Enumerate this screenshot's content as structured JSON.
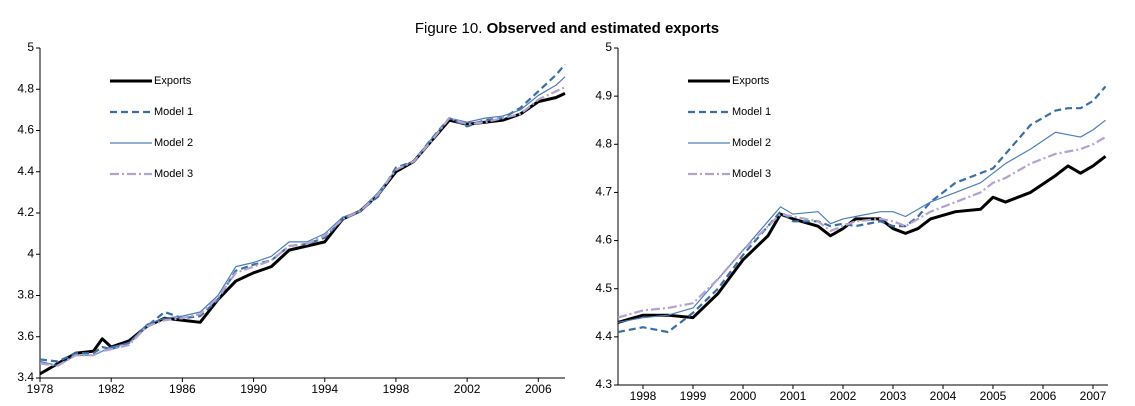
{
  "figure_title": {
    "prefix": "Figure 10.",
    "text": "Observed and estimated exports"
  },
  "chart_data": [
    {
      "type": "line",
      "legend": "upper left",
      "grid": false,
      "xlim": [
        1978,
        2007.5
      ],
      "xticks": [
        1978,
        1982,
        1986,
        1990,
        1994,
        1998,
        2002,
        2006
      ],
      "ylim": [
        3.4,
        5
      ],
      "yticks": [
        3.4,
        3.6,
        3.8,
        4,
        4.2,
        4.4,
        4.6,
        4.8,
        5
      ],
      "x": [
        1978,
        1979,
        1980,
        1981,
        1981.5,
        1982,
        1983,
        1984,
        1985,
        1986,
        1987,
        1988,
        1989,
        1990,
        1991,
        1992,
        1993,
        1994,
        1995,
        1996,
        1997,
        1998,
        1999,
        2000,
        2001,
        2002,
        2003,
        2004,
        2005,
        2006,
        2007,
        2007.5
      ],
      "series": [
        {
          "name": "Exports",
          "color": "#000000",
          "style": "solid",
          "width": 3,
          "values": [
            3.42,
            3.47,
            3.52,
            3.53,
            3.59,
            3.55,
            3.58,
            3.65,
            3.69,
            3.68,
            3.67,
            3.78,
            3.87,
            3.91,
            3.94,
            4.02,
            4.04,
            4.06,
            4.17,
            4.21,
            4.29,
            4.4,
            4.45,
            4.55,
            4.65,
            4.63,
            4.64,
            4.65,
            4.68,
            4.74,
            4.76,
            4.78
          ]
        },
        {
          "name": "Model 1",
          "color": "#3a6ea5",
          "style": "dashed",
          "width": 2.2,
          "values": [
            3.49,
            3.48,
            3.52,
            3.52,
            3.55,
            3.54,
            3.57,
            3.65,
            3.72,
            3.69,
            3.7,
            3.78,
            3.92,
            3.95,
            3.97,
            4.04,
            4.05,
            4.08,
            4.17,
            4.21,
            4.28,
            4.42,
            4.45,
            4.56,
            4.66,
            4.62,
            4.65,
            4.66,
            4.71,
            4.79,
            4.87,
            4.92
          ]
        },
        {
          "name": "Model 2",
          "color": "#4a7ebb",
          "style": "solid",
          "width": 1.2,
          "values": [
            3.48,
            3.46,
            3.51,
            3.51,
            3.53,
            3.55,
            3.57,
            3.66,
            3.69,
            3.7,
            3.72,
            3.8,
            3.94,
            3.96,
            3.99,
            4.06,
            4.06,
            4.1,
            4.18,
            4.21,
            4.3,
            4.41,
            4.45,
            4.56,
            4.66,
            4.64,
            4.66,
            4.67,
            4.7,
            4.77,
            4.82,
            4.86
          ]
        },
        {
          "name": "Model 3",
          "color": "#b3a2cf",
          "style": "dashdot",
          "width": 2.2,
          "values": [
            3.47,
            3.46,
            3.51,
            3.51,
            3.53,
            3.54,
            3.56,
            3.65,
            3.68,
            3.69,
            3.71,
            3.79,
            3.91,
            3.94,
            3.97,
            4.04,
            4.05,
            4.09,
            4.17,
            4.21,
            4.29,
            4.41,
            4.45,
            4.55,
            4.66,
            4.63,
            4.64,
            4.66,
            4.68,
            4.75,
            4.79,
            4.81
          ]
        }
      ]
    },
    {
      "type": "line",
      "legend": "upper left",
      "grid": false,
      "xlim": [
        1998,
        2007.8
      ],
      "xticks": [
        {
          "value": 1998.5,
          "label": "1998"
        },
        {
          "value": 1999.5,
          "label": "1999"
        },
        {
          "value": 2000.5,
          "label": "2000"
        },
        {
          "value": 2001.5,
          "label": "2001"
        },
        {
          "value": 2002.5,
          "label": "2002"
        },
        {
          "value": 2003.5,
          "label": "2003"
        },
        {
          "value": 2004.5,
          "label": "2004"
        },
        {
          "value": 2005.5,
          "label": "2005"
        },
        {
          "value": 2006.5,
          "label": "2006"
        },
        {
          "value": 2007.5,
          "label": "2007"
        }
      ],
      "ylim": [
        4.3,
        5
      ],
      "yticks": [
        4.3,
        4.4,
        4.5,
        4.6,
        4.7,
        4.8,
        4.9,
        5
      ],
      "x": [
        1998,
        1998.5,
        1999,
        1999.5,
        2000,
        2000.5,
        2001,
        2001.25,
        2001.5,
        2002,
        2002.25,
        2002.5,
        2002.75,
        2003.25,
        2003.5,
        2003.75,
        2004,
        2004.25,
        2004.75,
        2005.25,
        2005.5,
        2005.75,
        2006.25,
        2006.75,
        2007,
        2007.25,
        2007.5,
        2007.75
      ],
      "series": [
        {
          "name": "Exports",
          "color": "#000000",
          "style": "solid",
          "width": 3,
          "values": [
            4.43,
            4.445,
            4.445,
            4.44,
            4.49,
            4.56,
            4.61,
            4.655,
            4.645,
            4.63,
            4.61,
            4.625,
            4.645,
            4.645,
            4.625,
            4.615,
            4.625,
            4.645,
            4.66,
            4.665,
            4.69,
            4.68,
            4.7,
            4.735,
            4.755,
            4.74,
            4.755,
            4.775
          ]
        },
        {
          "name": "Model 1",
          "color": "#3a6ea5",
          "style": "dashed",
          "width": 2.2,
          "values": [
            4.41,
            4.42,
            4.41,
            4.45,
            4.5,
            4.57,
            4.63,
            4.66,
            4.64,
            4.64,
            4.63,
            4.635,
            4.63,
            4.64,
            4.63,
            4.63,
            4.65,
            4.68,
            4.72,
            4.74,
            4.75,
            4.78,
            4.84,
            4.87,
            4.875,
            4.875,
            4.89,
            4.92
          ]
        },
        {
          "name": "Model 2",
          "color": "#4a7ebb",
          "style": "solid",
          "width": 1.2,
          "values": [
            4.43,
            4.44,
            4.445,
            4.46,
            4.52,
            4.58,
            4.64,
            4.67,
            4.655,
            4.66,
            4.635,
            4.645,
            4.65,
            4.66,
            4.66,
            4.65,
            4.665,
            4.68,
            4.7,
            4.72,
            4.74,
            4.76,
            4.79,
            4.825,
            4.82,
            4.815,
            4.83,
            4.85
          ]
        },
        {
          "name": "Model 3",
          "color": "#b3a2cf",
          "style": "dashdot",
          "width": 2.2,
          "values": [
            4.44,
            4.455,
            4.46,
            4.47,
            4.52,
            4.58,
            4.63,
            4.655,
            4.65,
            4.64,
            4.62,
            4.63,
            4.64,
            4.645,
            4.64,
            4.63,
            4.645,
            4.66,
            4.68,
            4.7,
            4.72,
            4.73,
            4.76,
            4.78,
            4.785,
            4.79,
            4.8,
            4.815
          ]
        }
      ]
    }
  ]
}
